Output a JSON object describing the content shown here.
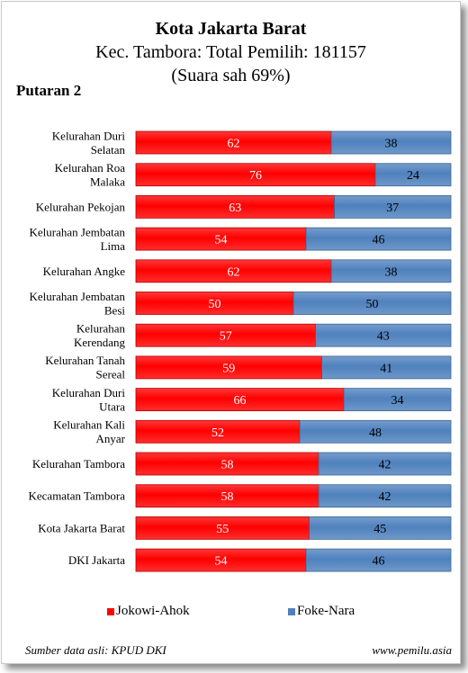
{
  "title": "Kota Jakarta Barat",
  "subtitle": "Kec. Tambora: Total Pemilih: 181157",
  "subtitle2": "(Suara sah 69%)",
  "round_label": "Putaran 2",
  "source": "Sumber data asli: KPUD DKI",
  "website": "www.pemilu.asia",
  "colors": {
    "jokowi": "#ff0000",
    "foke": "#4f81bd"
  },
  "chart_data": {
    "type": "bar",
    "orientation": "horizontal",
    "stacked": true,
    "xlim": [
      0,
      100
    ],
    "legend_position": "bottom",
    "categories": [
      [
        "Kelurahan Duri",
        "Selatan"
      ],
      [
        "Kelurahan Roa",
        "Malaka"
      ],
      [
        "Kelurahan Pekojan"
      ],
      [
        "Kelurahan Jembatan",
        "Lima"
      ],
      [
        "Kelurahan Angke"
      ],
      [
        "Kelurahan Jembatan",
        "Besi"
      ],
      [
        "Kelurahan",
        "Kerendang"
      ],
      [
        "Kelurahan Tanah",
        "Sereal"
      ],
      [
        "Kelurahan Duri",
        "Utara"
      ],
      [
        "Kelurahan Kali",
        "Anyar"
      ],
      [
        "Kelurahan Tambora"
      ],
      [
        "Kecamatan Tambora"
      ],
      [
        "Kota Jakarta Barat"
      ],
      [
        "DKI Jakarta"
      ]
    ],
    "series": [
      {
        "name": "Jokowi-Ahok",
        "values": [
          62,
          76,
          63,
          54,
          62,
          50,
          57,
          59,
          66,
          52,
          58,
          58,
          55,
          54
        ]
      },
      {
        "name": "Foke-Nara",
        "values": [
          38,
          24,
          37,
          46,
          38,
          50,
          43,
          41,
          34,
          48,
          42,
          42,
          45,
          46
        ]
      }
    ]
  }
}
